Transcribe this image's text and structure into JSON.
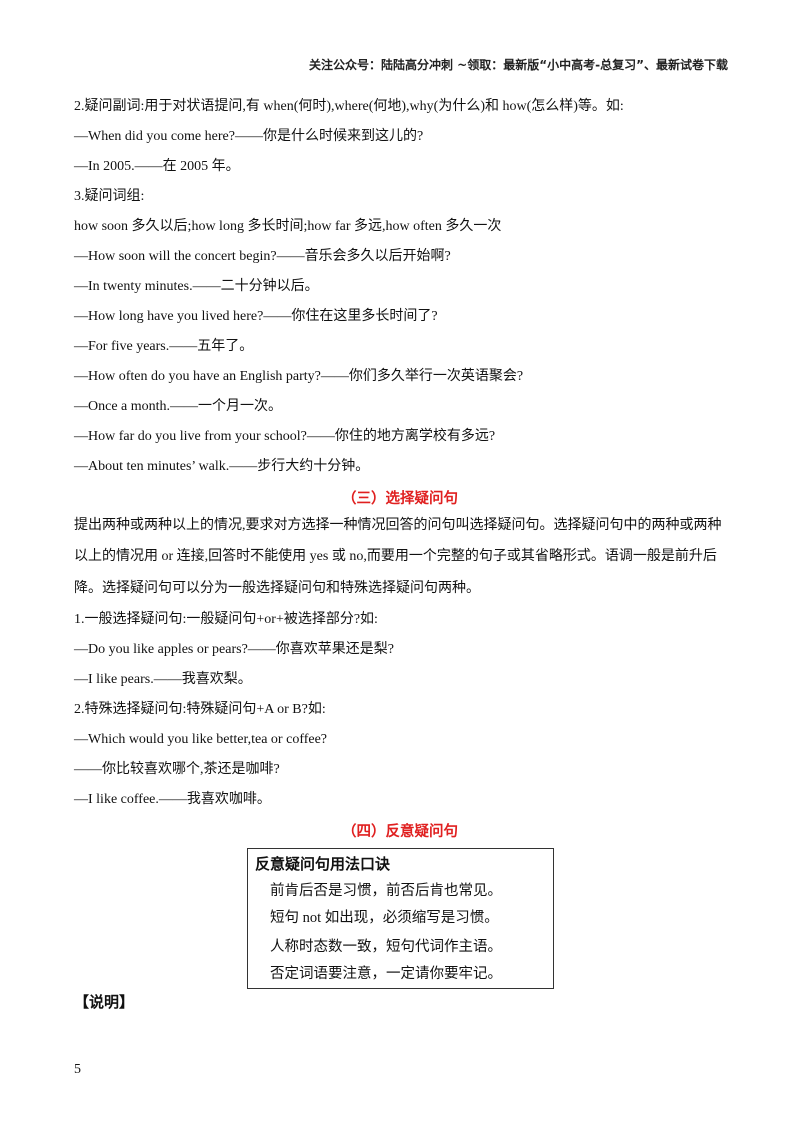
{
  "header": "关注公众号：陆陆高分冲刺 ~领取：最新版“小中高考-总复习”、最新试卷下载",
  "lines": [
    "2.疑问副词:用于对状语提问,有 when(何时),where(何地),why(为什么)和 how(怎么样)等。如:",
    "—When did you come here?——你是什么时候来到这儿的?",
    "—In 2005.——在 2005 年。",
    "3.疑问词组:",
    "how soon 多久以后;how long 多长时间;how far 多远,how often  多久一次",
    "—How soon will the concert begin?——音乐会多久以后开始啊?",
    "—In twenty minutes.——二十分钟以后。",
    "—How long have you lived here?——你住在这里多长时间了?",
    "—For five years.——五年了。",
    "—How often do you have an English party?——你们多久举行一次英语聚会?",
    "—Once a month.——一个月一次。",
    "—How far do you live from your school?——你住的地方离学校有多远?",
    "—About ten minutes’ walk.——步行大约十分钟。"
  ],
  "heading3": "（三）选择疑问句",
  "lines2": [
    "提出两种或两种以上的情况,要求对方选择一种情况回答的问句叫选择疑问句。选择疑问句中的两种或两种",
    "以上的情况用 or 连接,回答时不能使用 yes 或 no,而要用一个完整的句子或其省略形式。语调一般是前升后",
    "降。选择疑问句可以分为一般选择疑问句和特殊选择疑问句两种。",
    "1.一般选择疑问句:一般疑问句+or+被选择部分?如:",
    "—Do you like apples or pears?——你喜欢苹果还是梨?",
    "—I like pears.——我喜欢梨。",
    "2.特殊选择疑问句:特殊疑问句+A or B?如:",
    "—Which would you like better,tea or    coffee?",
    "——你比较喜欢哪个,茶还是咖啡?",
    "—I like coffee.——我喜欢咖啡。"
  ],
  "heading4": "（四）反意疑问句",
  "box": {
    "title": "反意疑问句用法口诀",
    "rows": [
      "前肯后否是习惯，前否后肯也常见。",
      "短句 not 如出现，必须缩写是习惯。",
      "人称时态数一致，短句代词作主语。",
      "否定词语要注意，一定请你要牢记。"
    ]
  },
  "note": "【说明】",
  "page_number": "5"
}
